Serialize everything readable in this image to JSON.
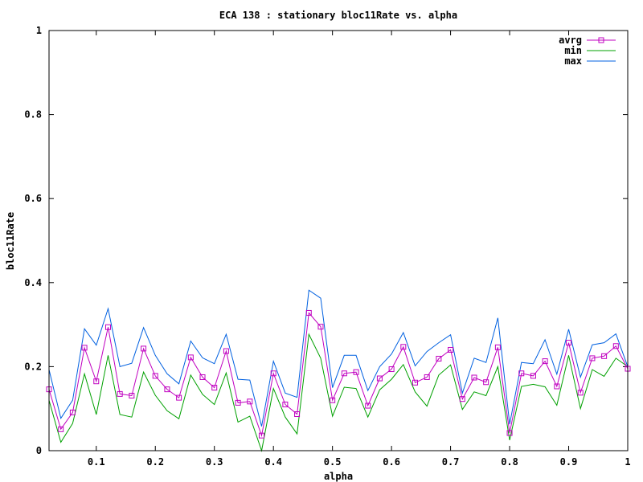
{
  "chart_data": {
    "type": "line",
    "title": "ECA 138 : stationary bloc11Rate vs. alpha",
    "xlabel": "alpha",
    "ylabel": "bloc11Rate",
    "xlim": [
      0.02,
      1.0
    ],
    "ylim": [
      0,
      1
    ],
    "xticks": [
      "0.1",
      "0.2",
      "0.3",
      "0.4",
      "0.5",
      "0.6",
      "0.7",
      "0.8",
      "0.9",
      "1"
    ],
    "yticks": [
      "0",
      "0.2",
      "0.4",
      "0.6",
      "0.8",
      "1"
    ],
    "grid": false,
    "legend_position": "top-right",
    "x": [
      0.02,
      0.04,
      0.06,
      0.08,
      0.1,
      0.12,
      0.14,
      0.16,
      0.18,
      0.2,
      0.22,
      0.24,
      0.26,
      0.28,
      0.3,
      0.32,
      0.34,
      0.36,
      0.38,
      0.4,
      0.42,
      0.44,
      0.46,
      0.48,
      0.5,
      0.52,
      0.54,
      0.56,
      0.58,
      0.6,
      0.62,
      0.64,
      0.66,
      0.68,
      0.7,
      0.72,
      0.74,
      0.76,
      0.78,
      0.8,
      0.82,
      0.84,
      0.86,
      0.88,
      0.9,
      0.92,
      0.94,
      0.96,
      0.98,
      1.0
    ],
    "series": [
      {
        "name": "avrg",
        "color": "#c000c0",
        "marker": "square",
        "values": [
          0.146,
          0.051,
          0.091,
          0.245,
          0.165,
          0.294,
          0.135,
          0.131,
          0.243,
          0.178,
          0.146,
          0.126,
          0.222,
          0.175,
          0.15,
          0.237,
          0.114,
          0.117,
          0.036,
          0.184,
          0.11,
          0.087,
          0.328,
          0.295,
          0.12,
          0.184,
          0.187,
          0.107,
          0.172,
          0.194,
          0.247,
          0.162,
          0.175,
          0.219,
          0.24,
          0.123,
          0.174,
          0.163,
          0.246,
          0.042,
          0.184,
          0.178,
          0.213,
          0.153,
          0.257,
          0.138,
          0.22,
          0.225,
          0.249,
          0.195
        ]
      },
      {
        "name": "min",
        "color": "#00a000",
        "marker": "none",
        "values": [
          0.12,
          0.02,
          0.065,
          0.183,
          0.086,
          0.227,
          0.086,
          0.08,
          0.187,
          0.132,
          0.095,
          0.076,
          0.18,
          0.134,
          0.11,
          0.185,
          0.068,
          0.082,
          0.0,
          0.148,
          0.08,
          0.04,
          0.277,
          0.22,
          0.082,
          0.151,
          0.148,
          0.08,
          0.145,
          0.17,
          0.205,
          0.14,
          0.106,
          0.18,
          0.204,
          0.098,
          0.14,
          0.131,
          0.2,
          0.025,
          0.153,
          0.158,
          0.152,
          0.108,
          0.227,
          0.1,
          0.193,
          0.177,
          0.22,
          0.2
        ]
      },
      {
        "name": "max",
        "color": "#0060e0",
        "marker": "none",
        "values": [
          0.193,
          0.077,
          0.12,
          0.29,
          0.251,
          0.338,
          0.2,
          0.208,
          0.293,
          0.227,
          0.183,
          0.159,
          0.261,
          0.221,
          0.207,
          0.277,
          0.17,
          0.168,
          0.058,
          0.213,
          0.137,
          0.127,
          0.382,
          0.363,
          0.15,
          0.227,
          0.227,
          0.143,
          0.2,
          0.23,
          0.281,
          0.202,
          0.236,
          0.257,
          0.276,
          0.137,
          0.22,
          0.21,
          0.316,
          0.063,
          0.21,
          0.207,
          0.264,
          0.182,
          0.289,
          0.175,
          0.252,
          0.257,
          0.278,
          0.2
        ]
      }
    ]
  }
}
